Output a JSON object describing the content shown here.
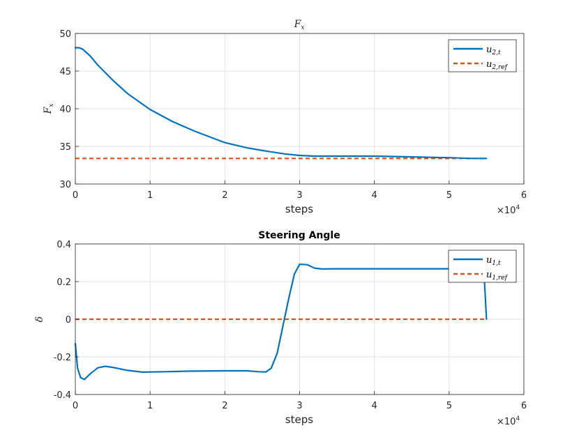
{
  "chart_data": [
    {
      "type": "line",
      "title": "F_x",
      "title_main": "F",
      "title_sub": "x",
      "xlabel": "steps",
      "ylabel": "F_x",
      "ylabel_main": "F",
      "ylabel_sub": "x",
      "x_exponent_base": "×10",
      "x_exponent": "4",
      "xlim": [
        0,
        6
      ],
      "ylim": [
        30,
        50
      ],
      "xticks": [
        0,
        1,
        2,
        3,
        4,
        5,
        6
      ],
      "xtick_labels": [
        "0",
        "1",
        "2",
        "3",
        "4",
        "5",
        "6"
      ],
      "yticks": [
        30,
        35,
        40,
        45,
        50
      ],
      "ytick_labels": [
        "30",
        "35",
        "40",
        "45",
        "50"
      ],
      "grid": true,
      "legend_location": "top-right",
      "series": [
        {
          "name": "u_{2,t}",
          "legend_main": "u",
          "legend_sub": "2,t",
          "color": "#0072BD",
          "style": "solid",
          "x": [
            0,
            0.05,
            0.1,
            0.2,
            0.3,
            0.5,
            0.7,
            1.0,
            1.3,
            1.6,
            2.0,
            2.3,
            2.6,
            2.8,
            3.0,
            3.2,
            3.5,
            4.0,
            4.5,
            5.0,
            5.3,
            5.5
          ],
          "y": [
            48.1,
            48.1,
            47.9,
            47.0,
            45.8,
            43.8,
            42.0,
            39.9,
            38.3,
            37.0,
            35.5,
            34.8,
            34.3,
            34.0,
            33.8,
            33.7,
            33.7,
            33.7,
            33.6,
            33.5,
            33.4,
            33.4
          ]
        },
        {
          "name": "u_{2,ref}",
          "legend_main": "u",
          "legend_sub": "2,ref",
          "color": "#D95319",
          "style": "dashed",
          "x": [
            0,
            5.5
          ],
          "y": [
            33.4,
            33.4
          ]
        }
      ]
    },
    {
      "type": "line",
      "title": "Steering Angle",
      "xlabel": "steps",
      "ylabel": "δ",
      "x_exponent_base": "×10",
      "x_exponent": "4",
      "xlim": [
        0,
        6
      ],
      "ylim": [
        -0.4,
        0.4
      ],
      "xticks": [
        0,
        1,
        2,
        3,
        4,
        5,
        6
      ],
      "xtick_labels": [
        "0",
        "1",
        "2",
        "3",
        "4",
        "5",
        "6"
      ],
      "yticks": [
        -0.4,
        -0.2,
        0,
        0.2,
        0.4
      ],
      "ytick_labels": [
        "-0.4",
        "-0.2",
        "0",
        "0.2",
        "0.4"
      ],
      "grid": true,
      "legend_location": "top-right",
      "series": [
        {
          "name": "u_{1,t}",
          "legend_main": "u",
          "legend_sub": "1,t",
          "color": "#0072BD",
          "style": "solid",
          "x": [
            0,
            0.03,
            0.07,
            0.12,
            0.2,
            0.3,
            0.4,
            0.5,
            0.7,
            0.9,
            1.2,
            1.5,
            2.0,
            2.3,
            2.45,
            2.55,
            2.62,
            2.7,
            2.78,
            2.86,
            2.93,
            3.0,
            3.1,
            3.2,
            3.3,
            3.5,
            4.0,
            4.5,
            5.0,
            5.45,
            5.47,
            5.5
          ],
          "y": [
            -0.13,
            -0.26,
            -0.31,
            -0.32,
            -0.29,
            -0.258,
            -0.25,
            -0.256,
            -0.272,
            -0.281,
            -0.279,
            -0.276,
            -0.274,
            -0.274,
            -0.279,
            -0.28,
            -0.26,
            -0.18,
            -0.03,
            0.12,
            0.24,
            0.292,
            0.29,
            0.272,
            0.267,
            0.268,
            0.268,
            0.268,
            0.268,
            0.268,
            0.22,
            0.0
          ]
        },
        {
          "name": "u_{1,ref}",
          "legend_main": "u",
          "legend_sub": "1,ref",
          "color": "#D95319",
          "style": "dashed",
          "x": [
            0,
            5.5
          ],
          "y": [
            0,
            0
          ]
        }
      ]
    }
  ]
}
